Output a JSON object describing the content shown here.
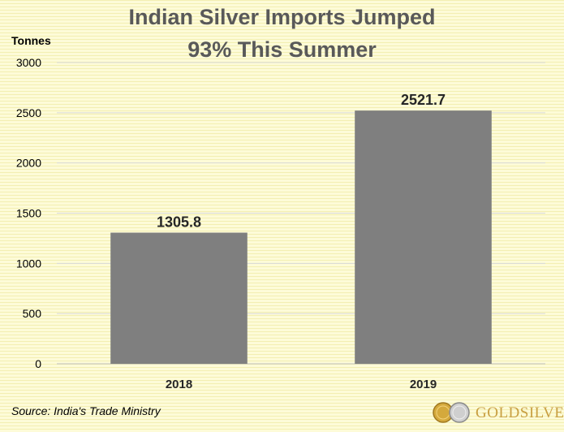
{
  "chart_data": {
    "type": "bar",
    "title": [
      "Indian Silver Imports Jumped",
      "93% This Summer"
    ],
    "ylabel": "Tonnes",
    "categories": [
      "2018",
      "2019"
    ],
    "values": [
      1305.8,
      2521.7
    ],
    "value_labels": [
      "1305.8",
      "2521.7"
    ],
    "ylim": [
      0,
      3000
    ],
    "yticks": [
      0,
      500,
      1000,
      1500,
      2000,
      2500,
      3000
    ],
    "grid": true,
    "legend": "none",
    "bar_color": "#7f7f7f"
  },
  "footer": {
    "source": "Source: India's Trade Ministry",
    "logo_text": "GOLDSILVER"
  },
  "colors": {
    "background": "#fdfbd8",
    "stripe": "#f3efb2",
    "title": "#595959",
    "gridline": "#d9d9d9",
    "axis": "#bfbfbf",
    "logo": "#c9a044"
  }
}
